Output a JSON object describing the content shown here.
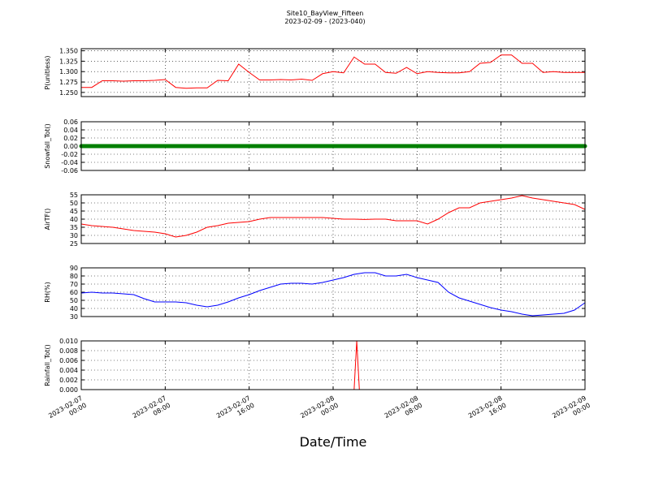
{
  "title": "Site10_BayView_Fifteen",
  "subtitle": "2023-02-09 - (2023-040)",
  "x_label": "Date/Time",
  "xlim": [
    "2023-02-07 00:00",
    "2023-02-09 00:00"
  ],
  "xticks": [
    {
      "value": "2023-02-07 00:00",
      "label": [
        "2023-02-07",
        "00:00"
      ]
    },
    {
      "value": "2023-02-07 08:00",
      "label": [
        "2023-02-07",
        "08:00"
      ]
    },
    {
      "value": "2023-02-07 16:00",
      "label": [
        "2023-02-07",
        "16:00"
      ]
    },
    {
      "value": "2023-02-08 00:00",
      "label": [
        "2023-02-08",
        "00:00"
      ]
    },
    {
      "value": "2023-02-08 08:00",
      "label": [
        "2023-02-08",
        "08:00"
      ]
    },
    {
      "value": "2023-02-08 16:00",
      "label": [
        "2023-02-08",
        "16:00"
      ]
    },
    {
      "value": "2023-02-09 00:00",
      "label": [
        "2023-02-09",
        "00:00"
      ]
    }
  ],
  "x": [
    "2023-02-07 00:00",
    "2023-02-07 01:00",
    "2023-02-07 02:00",
    "2023-02-07 03:00",
    "2023-02-07 04:00",
    "2023-02-07 05:00",
    "2023-02-07 06:00",
    "2023-02-07 07:00",
    "2023-02-07 08:00",
    "2023-02-07 09:00",
    "2023-02-07 10:00",
    "2023-02-07 11:00",
    "2023-02-07 12:00",
    "2023-02-07 13:00",
    "2023-02-07 14:00",
    "2023-02-07 15:00",
    "2023-02-07 16:00",
    "2023-02-07 17:00",
    "2023-02-07 18:00",
    "2023-02-07 19:00",
    "2023-02-07 20:00",
    "2023-02-07 21:00",
    "2023-02-07 22:00",
    "2023-02-07 23:00",
    "2023-02-08 00:00",
    "2023-02-08 01:00",
    "2023-02-08 02:00",
    "2023-02-08 03:00",
    "2023-02-08 04:00",
    "2023-02-08 05:00",
    "2023-02-08 06:00",
    "2023-02-08 07:00",
    "2023-02-08 08:00",
    "2023-02-08 09:00",
    "2023-02-08 10:00",
    "2023-02-08 11:00",
    "2023-02-08 12:00",
    "2023-02-08 13:00",
    "2023-02-08 14:00",
    "2023-02-08 15:00",
    "2023-02-08 16:00",
    "2023-02-08 17:00",
    "2023-02-08 18:00",
    "2023-02-08 19:00",
    "2023-02-08 20:00",
    "2023-02-08 21:00",
    "2023-02-08 22:00",
    "2023-02-08 23:00",
    "2023-02-09 00:00"
  ],
  "chart_data": [
    {
      "type": "line",
      "y_label": "P(unitless)",
      "color": "#ff0000",
      "grid": true,
      "ylim": [
        1.24,
        1.355
      ],
      "yticks": [
        {
          "value": 1.25,
          "label": "1.250"
        },
        1.275,
        {
          "value": 1.3,
          "label": "1.300"
        },
        1.325,
        {
          "value": 1.35,
          "label": "1.350"
        }
      ],
      "values": [
        1.262,
        1.262,
        1.278,
        1.278,
        1.277,
        1.278,
        1.278,
        1.279,
        1.281,
        1.262,
        1.26,
        1.261,
        1.261,
        1.279,
        1.278,
        1.318,
        1.298,
        1.28,
        1.28,
        1.281,
        1.28,
        1.282,
        1.279,
        1.295,
        1.3,
        1.297,
        1.335,
        1.318,
        1.318,
        1.298,
        1.296,
        1.31,
        1.295,
        1.3,
        1.298,
        1.297,
        1.297,
        1.3,
        1.32,
        1.322,
        1.34,
        1.34,
        1.32,
        1.32,
        1.298,
        1.3,
        1.298,
        1.298,
        1.298
      ]
    },
    {
      "type": "line",
      "y_label": "Snowfall_Tot()",
      "color": "#008000",
      "markers": true,
      "grid": true,
      "ylim": [
        -0.06,
        0.06
      ],
      "yticks": [
        -0.06,
        -0.04,
        -0.02,
        {
          "value": 0,
          "label": "0.00"
        },
        0.02,
        0.04,
        0.06
      ],
      "values": [
        0,
        0,
        0,
        0,
        0,
        0,
        0,
        0,
        0,
        0,
        0,
        0,
        0,
        0,
        0,
        0,
        0,
        0,
        0,
        0,
        0,
        0,
        0,
        0,
        0,
        0,
        0,
        0,
        0,
        0,
        0,
        0,
        0,
        0,
        0,
        0,
        0,
        0,
        0,
        0,
        0,
        0,
        0,
        0,
        0,
        0,
        0,
        0,
        0
      ]
    },
    {
      "type": "line",
      "y_label": "AirTF()",
      "color": "#ff0000",
      "grid": true,
      "ylim": [
        25,
        55
      ],
      "yticks": [
        25,
        30,
        35,
        40,
        45,
        50,
        55
      ],
      "values": [
        37,
        36,
        35.5,
        35,
        34,
        33,
        32.5,
        32,
        31,
        29,
        30,
        32,
        35,
        36,
        37.5,
        38,
        38.5,
        40,
        41,
        41,
        41,
        41,
        41,
        41,
        40.5,
        40,
        40,
        39.8,
        40,
        40,
        39,
        39,
        39,
        37,
        40,
        44,
        47,
        47,
        50,
        51,
        52,
        53,
        54.5,
        53,
        52,
        51,
        50,
        49,
        46
      ]
    },
    {
      "type": "line",
      "y_label": "RH(%)",
      "color": "#0000ff",
      "grid": true,
      "ylim": [
        30,
        90
      ],
      "yticks": [
        30,
        40,
        50,
        60,
        70,
        80,
        90
      ],
      "values": [
        59,
        60,
        59,
        59,
        58,
        57,
        52,
        48,
        48,
        48,
        47,
        44,
        42,
        44,
        48,
        53,
        57,
        62,
        66,
        70,
        71,
        71,
        70,
        72,
        75,
        78,
        82,
        84,
        84,
        80,
        80,
        82,
        78,
        75,
        72,
        60,
        53,
        49,
        45,
        41,
        38,
        36,
        33,
        31,
        32,
        33,
        34,
        38,
        47
      ]
    },
    {
      "type": "line",
      "y_label": "Rainfall_Tot()",
      "color": "#ff0000",
      "grid": true,
      "ylim": [
        0,
        0.01
      ],
      "yticks": [
        {
          "value": 0,
          "label": "0.000"
        },
        {
          "value": 0.002,
          "label": "0.002"
        },
        {
          "value": 0.004,
          "label": "0.004"
        },
        {
          "value": 0.006,
          "label": "0.006"
        },
        {
          "value": 0.008,
          "label": "0.008"
        },
        {
          "value": 0.01,
          "label": "0.010"
        }
      ],
      "x": [
        "2023-02-07 00:00",
        "2023-02-08 02:00",
        "2023-02-08 02:15",
        "2023-02-08 02:30",
        "2023-02-09 00:00"
      ],
      "values": [
        0,
        0,
        0.01,
        0,
        0
      ]
    }
  ]
}
